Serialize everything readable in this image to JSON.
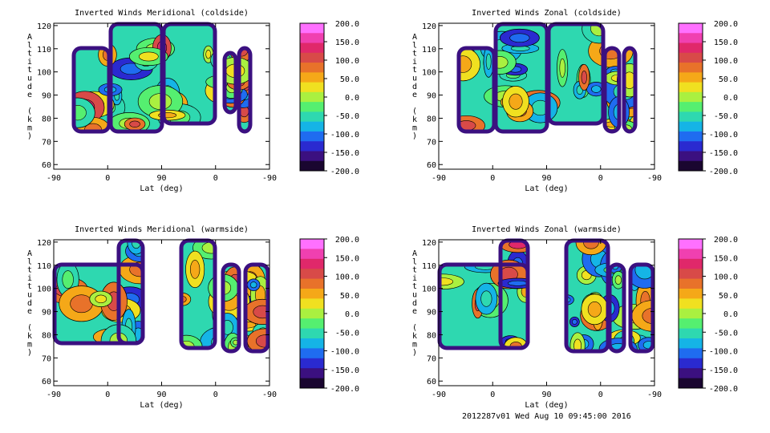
{
  "chart_data": [
    {
      "type": "contour",
      "title": "Inverted Winds Meridional (coldside)",
      "xlabel": "Lat (deg)",
      "ylabel": "Altitude (km)",
      "x_tick_labels": [
        "-90",
        "0",
        "90",
        "0",
        "-90"
      ],
      "y_ticks": [
        60,
        70,
        80,
        90,
        100,
        110,
        120
      ],
      "ylim": [
        58,
        121
      ],
      "colorbar_ticks": [
        "200.0",
        "150.0",
        "100.0",
        "50.0",
        "0.0",
        "-50.0",
        "-100.0",
        "-150.0",
        "-200.0"
      ],
      "clim": [
        -200,
        200
      ]
    },
    {
      "type": "contour",
      "title": "Inverted Winds Zonal (coldside)",
      "xlabel": "Lat (deg)",
      "ylabel": "Altitude (km)",
      "x_tick_labels": [
        "-90",
        "0",
        "90",
        "0",
        "-90"
      ],
      "y_ticks": [
        60,
        70,
        80,
        90,
        100,
        110,
        120
      ],
      "ylim": [
        58,
        121
      ],
      "colorbar_ticks": [
        "200.0",
        "150.0",
        "100.0",
        "50.0",
        "0.0",
        "-50.0",
        "-100.0",
        "-150.0",
        "-200.0"
      ],
      "clim": [
        -200,
        200
      ]
    },
    {
      "type": "contour",
      "title": "Inverted Winds Meridional (warmside)",
      "xlabel": "Lat (deg)",
      "ylabel": "Altitude (km)",
      "x_tick_labels": [
        "-90",
        "0",
        "90",
        "0",
        "-90"
      ],
      "y_ticks": [
        60,
        70,
        80,
        90,
        100,
        110,
        120
      ],
      "ylim": [
        58,
        121
      ],
      "colorbar_ticks": [
        "200.0",
        "150.0",
        "100.0",
        "50.0",
        "0.0",
        "-50.0",
        "-100.0",
        "-150.0",
        "-200.0"
      ],
      "clim": [
        -200,
        200
      ]
    },
    {
      "type": "contour",
      "title": "Inverted Winds Zonal (warmside)",
      "xlabel": "Lat (deg)",
      "ylabel": "Altitude (km)",
      "x_tick_labels": [
        "-90",
        "0",
        "90",
        "0",
        "-90"
      ],
      "y_ticks": [
        60,
        70,
        80,
        90,
        100,
        110,
        120
      ],
      "ylim": [
        58,
        121
      ],
      "colorbar_ticks": [
        "200.0",
        "150.0",
        "100.0",
        "50.0",
        "0.0",
        "-50.0",
        "-100.0",
        "-150.0",
        "-200.0"
      ],
      "clim": [
        -200,
        200
      ]
    }
  ],
  "colormap": [
    "#1a0630",
    "#3b1080",
    "#2a2ad0",
    "#1f6cf0",
    "#15b4e6",
    "#2ed8b0",
    "#55ef70",
    "#aaf040",
    "#f0e020",
    "#f5a818",
    "#e8722a",
    "#d84a48",
    "#e0286a",
    "#f040b0",
    "#ff70ff"
  ],
  "footer": "2012287v01 Wed Aug 10 09:45:00 2016"
}
